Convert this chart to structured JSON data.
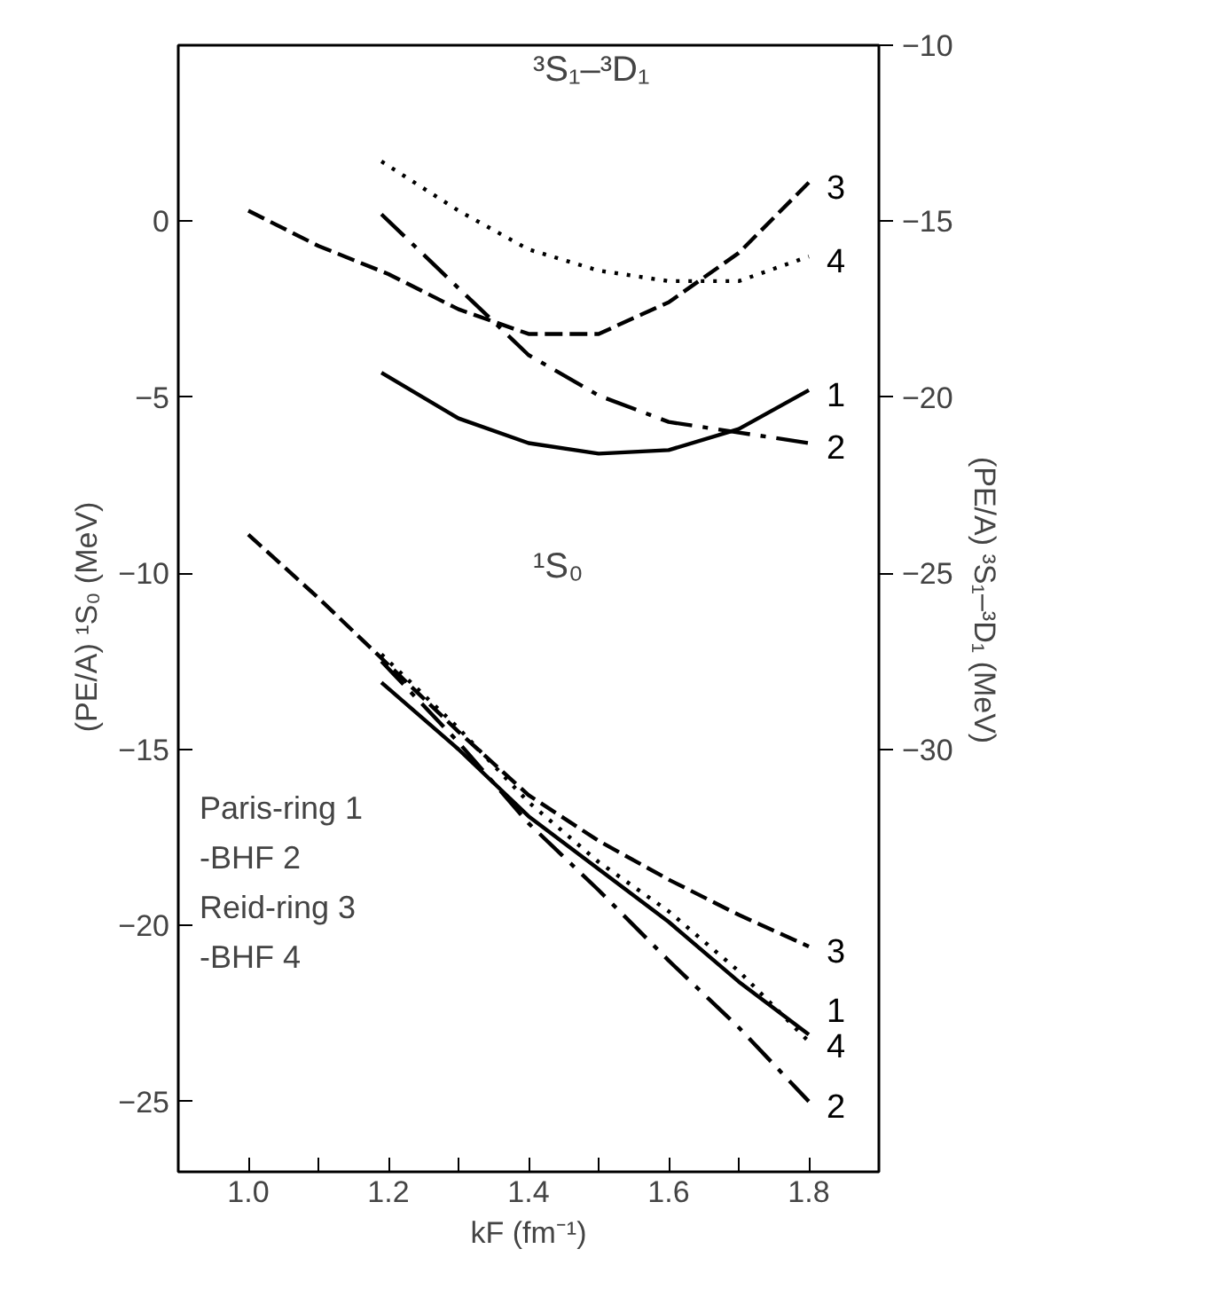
{
  "chart_data": {
    "type": "line",
    "xlabel": "kF (fm⁻¹)",
    "ylabel": "(PE/A) ¹S₀   (MeV)",
    "y2label": "(PE/A) ³S₁–³D₁   (MeV)",
    "xlim": [
      0.9,
      1.9
    ],
    "xticks": [
      {
        "value": 1.0,
        "label": "1.0"
      },
      {
        "value": 1.1,
        "label": null
      },
      {
        "value": 1.2,
        "label": "1.2"
      },
      {
        "value": 1.3,
        "label": null
      },
      {
        "value": 1.4,
        "label": "1.4"
      },
      {
        "value": 1.5,
        "label": null
      },
      {
        "value": 1.6,
        "label": "1.6"
      },
      {
        "value": 1.7,
        "label": null
      },
      {
        "value": 1.8,
        "label": "1.8"
      }
    ],
    "ylim": [
      -27,
      5
    ],
    "yticks": [
      -25,
      -20,
      -15,
      -10,
      -5,
      0
    ],
    "y2lim": [
      -42,
      -10
    ],
    "y2ticks": [
      -30,
      -25,
      -20,
      -15,
      -10
    ],
    "grid": false,
    "legend": "right",
    "annotations": [
      "³S₁–³D₁",
      "¹S₀",
      "Paris-ring 1",
      "-BHF 2",
      "Reid-ring 3",
      "-BHF 4"
    ],
    "series": [
      {
        "name": "1",
        "axis": "y2",
        "color": "#000000",
        "line_style": "solid",
        "x": [
          1.19,
          1.3,
          1.4,
          1.5,
          1.6,
          1.7,
          1.8
        ],
        "values": [
          -19.3,
          -20.6,
          -21.3,
          -21.6,
          -21.5,
          -20.9,
          -19.8
        ]
      },
      {
        "name": "2",
        "axis": "y2",
        "color": "#000000",
        "line_style": "dashdot",
        "x": [
          1.19,
          1.3,
          1.4,
          1.5,
          1.6,
          1.7,
          1.8
        ],
        "values": [
          -14.8,
          -16.9,
          -18.8,
          -19.95,
          -20.7,
          -21.0,
          -21.3
        ]
      },
      {
        "name": "3",
        "axis": "y2",
        "color": "#000000",
        "line_style": "dashed",
        "x": [
          1.0,
          1.1,
          1.2,
          1.3,
          1.4,
          1.5,
          1.6,
          1.7,
          1.8
        ],
        "values": [
          -14.7,
          -15.7,
          -16.5,
          -17.5,
          -18.2,
          -18.2,
          -17.3,
          -15.9,
          -13.9
        ]
      },
      {
        "name": "4",
        "axis": "y2",
        "color": "#000000",
        "line_style": "dotted",
        "x": [
          1.19,
          1.3,
          1.4,
          1.5,
          1.6,
          1.7,
          1.8
        ],
        "values": [
          -13.3,
          -14.7,
          -15.8,
          -16.4,
          -16.7,
          -16.7,
          -16.0
        ]
      },
      {
        "name": "1",
        "color": "#000000",
        "line_style": "solid",
        "x": [
          1.19,
          1.3,
          1.4,
          1.5,
          1.6,
          1.7,
          1.8
        ],
        "values": [
          -13.1,
          -15.0,
          -16.9,
          -18.4,
          -19.9,
          -21.6,
          -23.1
        ]
      },
      {
        "name": "2",
        "color": "#000000",
        "line_style": "dashdot",
        "x": [
          1.19,
          1.3,
          1.4,
          1.5,
          1.6,
          1.7,
          1.8
        ],
        "values": [
          -12.5,
          -14.8,
          -17.1,
          -19.0,
          -21.0,
          -22.9,
          -25.0
        ]
      },
      {
        "name": "3",
        "color": "#000000",
        "line_style": "dashed",
        "x": [
          1.0,
          1.1,
          1.2,
          1.3,
          1.4,
          1.5,
          1.6,
          1.7,
          1.8
        ],
        "values": [
          -8.9,
          -10.7,
          -12.6,
          -14.5,
          -16.3,
          -17.6,
          -18.7,
          -19.7,
          -20.6
        ]
      },
      {
        "name": "4",
        "color": "#000000",
        "line_style": "dotted",
        "x": [
          1.19,
          1.3,
          1.4,
          1.5,
          1.6,
          1.7,
          1.8
        ],
        "values": [
          -12.3,
          -14.4,
          -16.5,
          -18.2,
          -19.6,
          -21.3,
          -23.3
        ]
      }
    ]
  }
}
